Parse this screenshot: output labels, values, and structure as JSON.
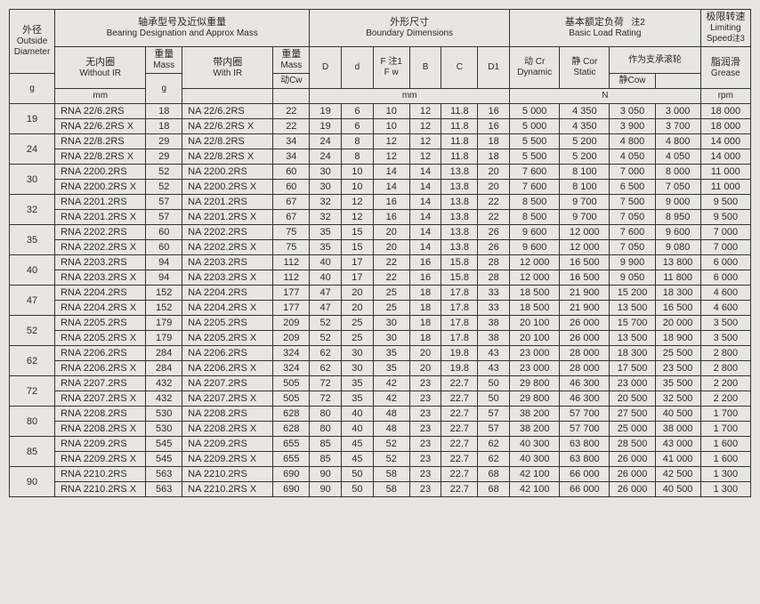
{
  "headers": {
    "outside_diameter_cn": "外径",
    "outside_diameter_en": "Outside Diameter",
    "designation_cn": "轴承型号及近似重量",
    "designation_en": "Bearing Designation and Approx Mass",
    "boundary_cn": "外形尺寸",
    "boundary_en": "Boundary Dimensions",
    "load_cn": "基本额定负荷",
    "load_en": "Basic Load Rating",
    "load_note": "注2",
    "limiting_cn": "极限转速",
    "limiting_en": "Limiting Speed",
    "limiting_note": "注3",
    "without_ir_cn": "无内圈",
    "without_ir_en": "Without IR",
    "with_ir_cn": "带内圈",
    "with_ir_en": "With IR",
    "mass_cn": "重量",
    "mass_en": "Mass",
    "D": "D",
    "d": "d",
    "Fw_cn": "F 注1",
    "Fw_en": "F w",
    "B": "B",
    "C": "C",
    "D1": "D1",
    "dynamic_cn": "动  Cr",
    "dynamic_en": "Dynamic",
    "static_cn": "静  Cor",
    "static_en": "Static",
    "support_cn": "作为支承滚轮",
    "dynCw": "动Cw",
    "statCow": "静Cow",
    "grease_cn": "脂润滑",
    "grease_en": "Grease",
    "mm": "mm",
    "g": "g",
    "N": "N",
    "rpm": "rpm"
  },
  "groups": [
    {
      "od": "19",
      "rows": [
        {
          "wir": "RNA 22/6.2RS",
          "m1": "18",
          "ir": "NA 22/6.2RS",
          "m2": "22",
          "D": "19",
          "d": "6",
          "Fw": "10",
          "B": "12",
          "C": "11.8",
          "D1": "16",
          "Cr": "5 000",
          "Cor": "4 350",
          "Cw": "3 050",
          "Cow": "3 000",
          "rpm": "18 000"
        },
        {
          "wir": "RNA 22/6.2RS X",
          "m1": "18",
          "ir": "NA 22/6.2RS X",
          "m2": "22",
          "D": "19",
          "d": "6",
          "Fw": "10",
          "B": "12",
          "C": "11.8",
          "D1": "16",
          "Cr": "5 000",
          "Cor": "4 350",
          "Cw": "3 900",
          "Cow": "3 700",
          "rpm": "18 000"
        }
      ]
    },
    {
      "od": "24",
      "rows": [
        {
          "wir": "RNA 22/8.2RS",
          "m1": "29",
          "ir": "NA 22/8.2RS",
          "m2": "34",
          "D": "24",
          "d": "8",
          "Fw": "12",
          "B": "12",
          "C": "11.8",
          "D1": "18",
          "Cr": "5 500",
          "Cor": "5 200",
          "Cw": "4 800",
          "Cow": "4 800",
          "rpm": "14 000"
        },
        {
          "wir": "RNA 22/8.2RS X",
          "m1": "29",
          "ir": "NA 22/8.2RS X",
          "m2": "34",
          "D": "24",
          "d": "8",
          "Fw": "12",
          "B": "12",
          "C": "11.8",
          "D1": "18",
          "Cr": "5 500",
          "Cor": "5 200",
          "Cw": "4 050",
          "Cow": "4 050",
          "rpm": "14 000"
        }
      ]
    },
    {
      "od": "30",
      "rows": [
        {
          "wir": "RNA 2200.2RS",
          "m1": "52",
          "ir": "NA 2200.2RS",
          "m2": "60",
          "D": "30",
          "d": "10",
          "Fw": "14",
          "B": "14",
          "C": "13.8",
          "D1": "20",
          "Cr": "7 600",
          "Cor": "8 100",
          "Cw": "7 000",
          "Cow": "8 000",
          "rpm": "11 000"
        },
        {
          "wir": "RNA 2200.2RS X",
          "m1": "52",
          "ir": "NA 2200.2RS X",
          "m2": "60",
          "D": "30",
          "d": "10",
          "Fw": "14",
          "B": "14",
          "C": "13.8",
          "D1": "20",
          "Cr": "7 600",
          "Cor": "8 100",
          "Cw": "6 500",
          "Cow": "7 050",
          "rpm": "11 000"
        }
      ]
    },
    {
      "od": "32",
      "rows": [
        {
          "wir": "RNA 2201.2RS",
          "m1": "57",
          "ir": "NA 2201.2RS",
          "m2": "67",
          "D": "32",
          "d": "12",
          "Fw": "16",
          "B": "14",
          "C": "13.8",
          "D1": "22",
          "Cr": "8 500",
          "Cor": "9 700",
          "Cw": "7 500",
          "Cow": "9 000",
          "rpm": "9 500"
        },
        {
          "wir": "RNA 2201.2RS X",
          "m1": "57",
          "ir": "NA 2201.2RS X",
          "m2": "67",
          "D": "32",
          "d": "12",
          "Fw": "16",
          "B": "14",
          "C": "13.8",
          "D1": "22",
          "Cr": "8 500",
          "Cor": "9 700",
          "Cw": "7 050",
          "Cow": "8 950",
          "rpm": "9 500"
        }
      ]
    },
    {
      "od": "35",
      "rows": [
        {
          "wir": "RNA 2202.2RS",
          "m1": "60",
          "ir": "NA 2202.2RS",
          "m2": "75",
          "D": "35",
          "d": "15",
          "Fw": "20",
          "B": "14",
          "C": "13.8",
          "D1": "26",
          "Cr": "9 600",
          "Cor": "12 000",
          "Cw": "7 600",
          "Cow": "9 600",
          "rpm": "7 000"
        },
        {
          "wir": "RNA 2202.2RS X",
          "m1": "60",
          "ir": "NA 2202.2RS X",
          "m2": "75",
          "D": "35",
          "d": "15",
          "Fw": "20",
          "B": "14",
          "C": "13.8",
          "D1": "26",
          "Cr": "9 600",
          "Cor": "12 000",
          "Cw": "7 050",
          "Cow": "9 080",
          "rpm": "7 000"
        }
      ]
    },
    {
      "od": "40",
      "rows": [
        {
          "wir": "RNA 2203.2RS",
          "m1": "94",
          "ir": "NA 2203.2RS",
          "m2": "112",
          "D": "40",
          "d": "17",
          "Fw": "22",
          "B": "16",
          "C": "15.8",
          "D1": "28",
          "Cr": "12 000",
          "Cor": "16 500",
          "Cw": "9 900",
          "Cow": "13 800",
          "rpm": "6 000"
        },
        {
          "wir": "RNA 2203.2RS X",
          "m1": "94",
          "ir": "NA 2203.2RS X",
          "m2": "112",
          "D": "40",
          "d": "17",
          "Fw": "22",
          "B": "16",
          "C": "15.8",
          "D1": "28",
          "Cr": "12 000",
          "Cor": "16 500",
          "Cw": "9 050",
          "Cow": "11 800",
          "rpm": "6 000"
        }
      ]
    },
    {
      "od": "47",
      "rows": [
        {
          "wir": "RNA 2204.2RS",
          "m1": "152",
          "ir": "NA 2204.2RS",
          "m2": "177",
          "D": "47",
          "d": "20",
          "Fw": "25",
          "B": "18",
          "C": "17.8",
          "D1": "33",
          "Cr": "18 500",
          "Cor": "21 900",
          "Cw": "15 200",
          "Cow": "18 300",
          "rpm": "4 600"
        },
        {
          "wir": "RNA 2204.2RS X",
          "m1": "152",
          "ir": "NA 2204.2RS X",
          "m2": "177",
          "D": "47",
          "d": "20",
          "Fw": "25",
          "B": "18",
          "C": "17.8",
          "D1": "33",
          "Cr": "18 500",
          "Cor": "21 900",
          "Cw": "13 500",
          "Cow": "16 500",
          "rpm": "4 600"
        }
      ]
    },
    {
      "od": "52",
      "rows": [
        {
          "wir": "RNA 2205.2RS",
          "m1": "179",
          "ir": "NA 2205.2RS",
          "m2": "209",
          "D": "52",
          "d": "25",
          "Fw": "30",
          "B": "18",
          "C": "17.8",
          "D1": "38",
          "Cr": "20 100",
          "Cor": "26 000",
          "Cw": "15 700",
          "Cow": "20 000",
          "rpm": "3 500"
        },
        {
          "wir": "RNA 2205.2RS X",
          "m1": "179",
          "ir": "NA 2205.2RS X",
          "m2": "209",
          "D": "52",
          "d": "25",
          "Fw": "30",
          "B": "18",
          "C": "17.8",
          "D1": "38",
          "Cr": "20 100",
          "Cor": "26 000",
          "Cw": "13 500",
          "Cow": "18 900",
          "rpm": "3 500"
        }
      ]
    },
    {
      "od": "62",
      "rows": [
        {
          "wir": "RNA 2206.2RS",
          "m1": "284",
          "ir": "NA 2206.2RS",
          "m2": "324",
          "D": "62",
          "d": "30",
          "Fw": "35",
          "B": "20",
          "C": "19.8",
          "D1": "43",
          "Cr": "23 000",
          "Cor": "28 000",
          "Cw": "18 300",
          "Cow": "25 500",
          "rpm": "2 800"
        },
        {
          "wir": "RNA 2206.2RS X",
          "m1": "284",
          "ir": "NA 2206.2RS X",
          "m2": "324",
          "D": "62",
          "d": "30",
          "Fw": "35",
          "B": "20",
          "C": "19.8",
          "D1": "43",
          "Cr": "23 000",
          "Cor": "28 000",
          "Cw": "17 500",
          "Cow": "23 500",
          "rpm": "2 800"
        }
      ]
    },
    {
      "od": "72",
      "rows": [
        {
          "wir": "RNA 2207.2RS",
          "m1": "432",
          "ir": "NA 2207.2RS",
          "m2": "505",
          "D": "72",
          "d": "35",
          "Fw": "42",
          "B": "23",
          "C": "22.7",
          "D1": "50",
          "Cr": "29 800",
          "Cor": "46 300",
          "Cw": "23 000",
          "Cow": "35 500",
          "rpm": "2 200"
        },
        {
          "wir": "RNA 2207.2RS X",
          "m1": "432",
          "ir": "NA 2207.2RS X",
          "m2": "505",
          "D": "72",
          "d": "35",
          "Fw": "42",
          "B": "23",
          "C": "22.7",
          "D1": "50",
          "Cr": "29 800",
          "Cor": "46 300",
          "Cw": "20 500",
          "Cow": "32 500",
          "rpm": "2 200"
        }
      ]
    },
    {
      "od": "80",
      "rows": [
        {
          "wir": "RNA 2208.2RS",
          "m1": "530",
          "ir": "NA 2208.2RS",
          "m2": "628",
          "D": "80",
          "d": "40",
          "Fw": "48",
          "B": "23",
          "C": "22.7",
          "D1": "57",
          "Cr": "38 200",
          "Cor": "57 700",
          "Cw": "27 500",
          "Cow": "40 500",
          "rpm": "1 700"
        },
        {
          "wir": "RNA 2208.2RS X",
          "m1": "530",
          "ir": "NA 2208.2RS X",
          "m2": "628",
          "D": "80",
          "d": "40",
          "Fw": "48",
          "B": "23",
          "C": "22.7",
          "D1": "57",
          "Cr": "38 200",
          "Cor": "57 700",
          "Cw": "25 000",
          "Cow": "38 000",
          "rpm": "1 700"
        }
      ]
    },
    {
      "od": "85",
      "rows": [
        {
          "wir": "RNA 2209.2RS",
          "m1": "545",
          "ir": "NA 2209.2RS",
          "m2": "655",
          "D": "85",
          "d": "45",
          "Fw": "52",
          "B": "23",
          "C": "22.7",
          "D1": "62",
          "Cr": "40 300",
          "Cor": "63 800",
          "Cw": "28 500",
          "Cow": "43 000",
          "rpm": "1 600"
        },
        {
          "wir": "RNA 2209.2RS X",
          "m1": "545",
          "ir": "NA 2209.2RS X",
          "m2": "655",
          "D": "85",
          "d": "45",
          "Fw": "52",
          "B": "23",
          "C": "22.7",
          "D1": "62",
          "Cr": "40 300",
          "Cor": "63 800",
          "Cw": "26 000",
          "Cow": "41 000",
          "rpm": "1 600"
        }
      ]
    },
    {
      "od": "90",
      "rows": [
        {
          "wir": "RNA 2210.2RS",
          "m1": "563",
          "ir": "NA 2210.2RS",
          "m2": "690",
          "D": "90",
          "d": "50",
          "Fw": "58",
          "B": "23",
          "C": "22.7",
          "D1": "68",
          "Cr": "42 100",
          "Cor": "66 000",
          "Cw": "26 000",
          "Cow": "42 500",
          "rpm": "1 300"
        },
        {
          "wir": "RNA 2210.2RS X",
          "m1": "563",
          "ir": "NA 2210.2RS X",
          "m2": "690",
          "D": "90",
          "d": "50",
          "Fw": "58",
          "B": "23",
          "C": "22.7",
          "D1": "68",
          "Cr": "42 100",
          "Cor": "66 000",
          "Cw": "26 000",
          "Cow": "40 500",
          "rpm": "1 300"
        }
      ]
    }
  ],
  "style": {
    "background": "#e8e6e0",
    "border_color": "#333333",
    "text_color": "#2a2a2a",
    "font_size_header": 10,
    "font_size_body": 11,
    "col_widths": {
      "od": 50,
      "wir": 100,
      "m1": 40,
      "ir": 100,
      "m2": 40,
      "D": 35,
      "d": 35,
      "Fw": 40,
      "B": 35,
      "C": 40,
      "D1": 35,
      "Cr": 55,
      "Cor": 55,
      "Cw": 50,
      "Cow": 50,
      "rpm": 55
    }
  }
}
